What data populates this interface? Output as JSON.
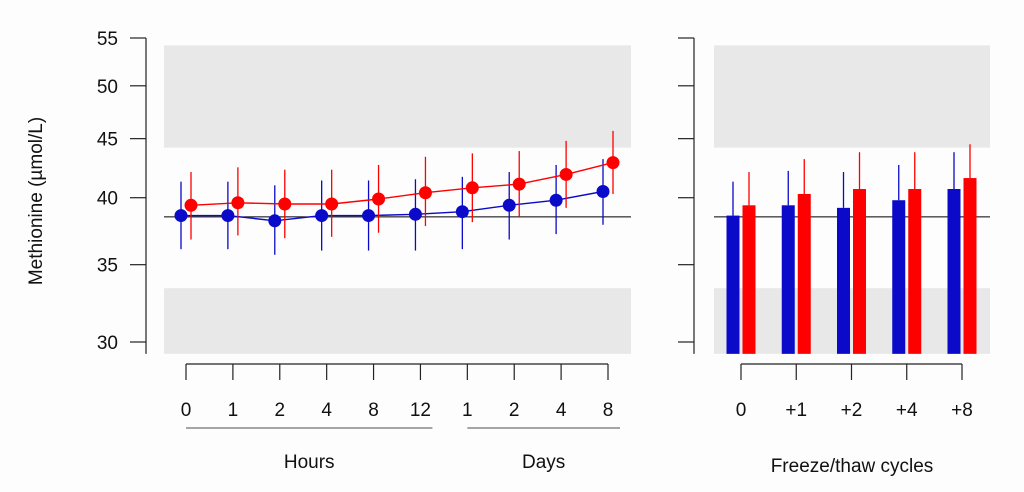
{
  "colors": {
    "series_a": "#0a0ac8",
    "series_b": "#ff0000",
    "band": "#e8e8e8",
    "axis": "#222222",
    "group_line": "#888888"
  },
  "chart_data": [
    {
      "type": "line",
      "ylabel": "Methionine (µmol/L)",
      "y_scale": "log",
      "ylim": [
        29.3,
        55
      ],
      "yticks": [
        30,
        35,
        40,
        45,
        50,
        55
      ],
      "reference_line": 38.5,
      "shaded_bands": [
        [
          29.3,
          33.4
        ],
        [
          44.2,
          54.2
        ]
      ],
      "categories": [
        "0",
        "1",
        "2",
        "4",
        "8",
        "12",
        "1",
        "2",
        "4",
        "8"
      ],
      "groups": [
        {
          "label": "Hours",
          "from": 0,
          "to": 5
        },
        {
          "label": "Days",
          "from": 6,
          "to": 9
        }
      ],
      "series": [
        {
          "color": "#0a0ac8",
          "values": [
            38.6,
            38.6,
            38.2,
            38.6,
            38.6,
            38.7,
            38.9,
            39.4,
            39.8,
            40.5
          ],
          "lower": [
            36.1,
            36.1,
            35.7,
            36.0,
            36.0,
            36.0,
            36.1,
            36.8,
            37.2,
            37.9
          ],
          "upper": [
            41.3,
            41.3,
            41.0,
            41.4,
            41.4,
            41.5,
            41.7,
            42.1,
            42.7,
            43.2
          ]
        },
        {
          "color": "#ff0000",
          "values": [
            39.4,
            39.6,
            39.5,
            39.5,
            39.9,
            40.4,
            40.8,
            41.1,
            41.9,
            42.9
          ],
          "lower": [
            36.8,
            37.1,
            36.9,
            37.0,
            37.3,
            37.8,
            38.1,
            38.5,
            39.2,
            40.3
          ],
          "upper": [
            42.1,
            42.5,
            42.3,
            42.3,
            42.7,
            43.4,
            43.7,
            43.9,
            44.8,
            45.7
          ]
        }
      ]
    },
    {
      "type": "bar",
      "xlabel": "Freeze/thaw cycles",
      "y_scale": "log",
      "ylim": [
        29.3,
        55
      ],
      "yticks": [
        30,
        35,
        40,
        45,
        50,
        55
      ],
      "reference_line": 38.5,
      "shaded_bands": [
        [
          29.3,
          33.4
        ],
        [
          44.2,
          54.2
        ]
      ],
      "categories": [
        "0",
        "+1",
        "+2",
        "+4",
        "+8"
      ],
      "series": [
        {
          "color": "#0a0ac8",
          "values": [
            38.6,
            39.4,
            39.2,
            39.8,
            40.7
          ],
          "upper": [
            41.3,
            42.2,
            42.1,
            42.7,
            43.8
          ]
        },
        {
          "color": "#ff0000",
          "values": [
            39.4,
            40.3,
            40.7,
            40.7,
            41.6
          ],
          "upper": [
            42.1,
            43.2,
            43.8,
            43.8,
            44.5
          ]
        }
      ]
    }
  ]
}
